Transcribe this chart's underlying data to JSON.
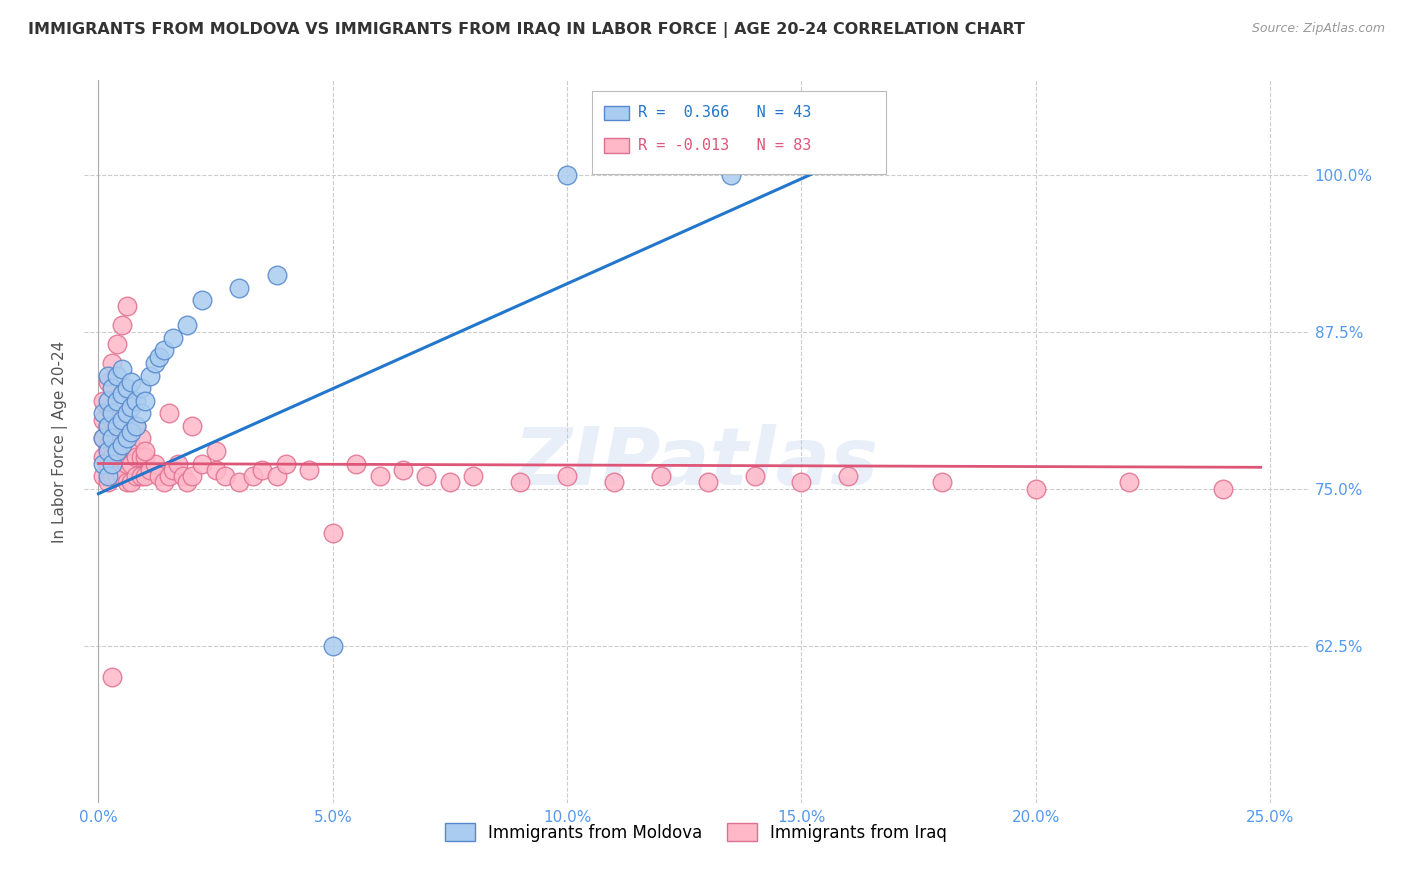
{
  "title": "IMMIGRANTS FROM MOLDOVA VS IMMIGRANTS FROM IRAQ IN LABOR FORCE | AGE 20-24 CORRELATION CHART",
  "source": "Source: ZipAtlas.com",
  "ylabel": "In Labor Force | Age 20-24",
  "ytick_values": [
    0.625,
    0.75,
    0.875,
    1.0
  ],
  "ytick_labels": [
    "62.5%",
    "75.0%",
    "87.5%",
    "100.0%"
  ],
  "xtick_values": [
    0.0,
    0.05,
    0.1,
    0.15,
    0.2,
    0.25
  ],
  "xtick_labels": [
    "0.0%",
    "5.0%",
    "10.0%",
    "15.0%",
    "20.0%",
    "25.0%"
  ],
  "xlim": [
    -0.003,
    0.258
  ],
  "ylim": [
    0.5,
    1.075
  ],
  "legend_blue_text": "R =  0.366   N = 43",
  "legend_pink_text": "R = -0.013   N = 83",
  "blue_face": "#aaccf0",
  "blue_edge": "#5588cc",
  "pink_face": "#ffb8c8",
  "pink_edge": "#e07090",
  "blue_line": "#2277cc",
  "pink_line": "#dd5577",
  "watermark": "ZIPatlas",
  "axis_color": "#cccccc",
  "tick_color": "#5599ee",
  "title_color": "#333333",
  "source_color": "#999999",
  "marker_size": 180,
  "moldova_x": [
    0.001,
    0.001,
    0.001,
    0.002,
    0.002,
    0.002,
    0.002,
    0.002,
    0.003,
    0.003,
    0.003,
    0.003,
    0.004,
    0.004,
    0.004,
    0.004,
    0.005,
    0.005,
    0.005,
    0.005,
    0.006,
    0.006,
    0.006,
    0.007,
    0.007,
    0.007,
    0.008,
    0.008,
    0.009,
    0.009,
    0.01,
    0.011,
    0.012,
    0.013,
    0.014,
    0.016,
    0.019,
    0.022,
    0.03,
    0.038,
    0.05,
    0.1,
    0.135
  ],
  "moldova_y": [
    0.77,
    0.79,
    0.81,
    0.76,
    0.78,
    0.8,
    0.82,
    0.84,
    0.77,
    0.79,
    0.81,
    0.83,
    0.78,
    0.8,
    0.82,
    0.84,
    0.785,
    0.805,
    0.825,
    0.845,
    0.79,
    0.81,
    0.83,
    0.795,
    0.815,
    0.835,
    0.8,
    0.82,
    0.81,
    0.83,
    0.82,
    0.84,
    0.85,
    0.855,
    0.86,
    0.87,
    0.88,
    0.9,
    0.91,
    0.92,
    0.625,
    1.0,
    1.0
  ],
  "iraq_x": [
    0.001,
    0.001,
    0.001,
    0.001,
    0.002,
    0.002,
    0.002,
    0.002,
    0.002,
    0.003,
    0.003,
    0.003,
    0.003,
    0.004,
    0.004,
    0.004,
    0.004,
    0.005,
    0.005,
    0.005,
    0.006,
    0.006,
    0.007,
    0.007,
    0.007,
    0.008,
    0.008,
    0.009,
    0.009,
    0.01,
    0.01,
    0.011,
    0.012,
    0.013,
    0.014,
    0.015,
    0.016,
    0.017,
    0.018,
    0.019,
    0.02,
    0.022,
    0.025,
    0.027,
    0.03,
    0.033,
    0.035,
    0.038,
    0.04,
    0.045,
    0.05,
    0.055,
    0.06,
    0.065,
    0.07,
    0.075,
    0.08,
    0.09,
    0.1,
    0.11,
    0.12,
    0.13,
    0.14,
    0.15,
    0.16,
    0.18,
    0.2,
    0.22,
    0.24,
    0.001,
    0.002,
    0.003,
    0.004,
    0.005,
    0.006,
    0.007,
    0.008,
    0.009,
    0.01,
    0.015,
    0.02,
    0.025,
    0.003
  ],
  "iraq_y": [
    0.76,
    0.775,
    0.79,
    0.805,
    0.755,
    0.77,
    0.785,
    0.8,
    0.815,
    0.76,
    0.775,
    0.79,
    0.805,
    0.76,
    0.775,
    0.79,
    0.805,
    0.76,
    0.775,
    0.79,
    0.755,
    0.77,
    0.755,
    0.77,
    0.785,
    0.76,
    0.775,
    0.76,
    0.775,
    0.76,
    0.775,
    0.765,
    0.77,
    0.76,
    0.755,
    0.76,
    0.765,
    0.77,
    0.76,
    0.755,
    0.76,
    0.77,
    0.765,
    0.76,
    0.755,
    0.76,
    0.765,
    0.76,
    0.77,
    0.765,
    0.715,
    0.77,
    0.76,
    0.765,
    0.76,
    0.755,
    0.76,
    0.755,
    0.76,
    0.755,
    0.76,
    0.755,
    0.76,
    0.755,
    0.76,
    0.755,
    0.75,
    0.755,
    0.75,
    0.82,
    0.835,
    0.85,
    0.865,
    0.88,
    0.895,
    0.82,
    0.8,
    0.79,
    0.78,
    0.81,
    0.8,
    0.78,
    0.6
  ],
  "blue_line_x": [
    0.0,
    0.155
  ],
  "blue_line_y": [
    0.746,
    1.005
  ],
  "pink_line_x": [
    0.0,
    0.248
  ],
  "pink_line_y": [
    0.77,
    0.767
  ]
}
